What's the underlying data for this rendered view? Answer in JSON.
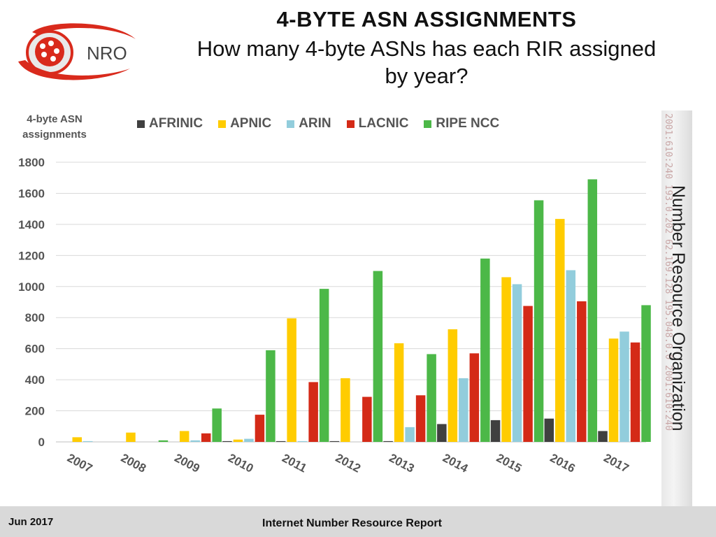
{
  "header": {
    "title": "4-BYTE ASN ASSIGNMENTS",
    "subtitle_line1": "How many 4-byte ASNs has each RIR assigned",
    "subtitle_line2": "by year?"
  },
  "logo": {
    "text": "NRO"
  },
  "side_banner": {
    "text": "Number Resource Organization",
    "ghost_text": "2001:610:240 193.0.202 62.169.128 195.048.0.0 2001:610:240"
  },
  "footer": {
    "date": "Jun 2017",
    "report": "Internet Number Resource Report"
  },
  "colors": {
    "AFRINIC": "#404040",
    "APNIC": "#FFCC00",
    "ARIN": "#92CDDC",
    "LACNIC": "#D42A17",
    "RIPE NCC": "#4CB848",
    "logo_red": "#D92A1C"
  },
  "chart_data": {
    "type": "bar",
    "title": "4-BYTE ASN ASSIGNMENTS",
    "ylabel_line1": "4-byte ASN",
    "ylabel_line2": "assignments",
    "xlabel": "",
    "ylim": [
      0,
      1800
    ],
    "yticks": [
      0,
      200,
      400,
      600,
      800,
      1000,
      1200,
      1400,
      1600,
      1800
    ],
    "grid": true,
    "legend_position": "top",
    "categories": [
      "2007",
      "2008",
      "2009",
      "2010",
      "2011",
      "2012",
      "2013",
      "2014",
      "2015",
      "2016",
      "2017"
    ],
    "series": [
      {
        "name": "AFRINIC",
        "values": [
          0,
          0,
          0,
          5,
          5,
          5,
          5,
          115,
          140,
          150,
          70
        ]
      },
      {
        "name": "APNIC",
        "values": [
          30,
          60,
          70,
          15,
          795,
          410,
          635,
          725,
          1060,
          1435,
          665
        ]
      },
      {
        "name": "ARIN",
        "values": [
          5,
          0,
          10,
          20,
          5,
          0,
          95,
          410,
          1015,
          1105,
          710
        ]
      },
      {
        "name": "LACNIC",
        "values": [
          0,
          0,
          55,
          175,
          385,
          290,
          300,
          570,
          875,
          905,
          640
        ]
      },
      {
        "name": "RIPE NCC",
        "values": [
          0,
          10,
          215,
          590,
          985,
          1100,
          565,
          1180,
          1555,
          1690,
          880
        ]
      }
    ]
  }
}
